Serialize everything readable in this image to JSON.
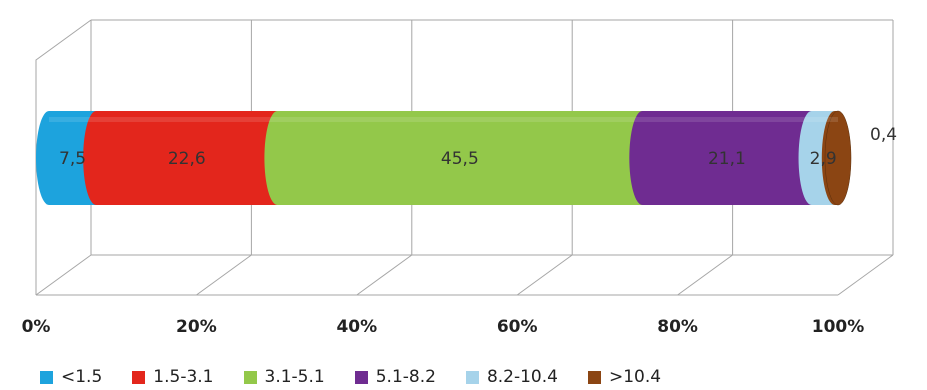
{
  "chart_data": {
    "type": "bar",
    "orientation": "horizontal",
    "stacked": true,
    "percent_scale": true,
    "three_d": true,
    "bar_shape": "cylinder",
    "grid": true,
    "legend_position": "bottom",
    "title": "",
    "xlabel": "",
    "ylabel": "",
    "xlim": [
      0,
      100
    ],
    "x_ticks": [
      "0%",
      "20%",
      "40%",
      "60%",
      "80%",
      "100%"
    ],
    "series": [
      {
        "name": "<1.5",
        "value": 7.5,
        "label": "7,5",
        "color": "#1da3dd"
      },
      {
        "name": "1.5-3.1",
        "value": 22.6,
        "label": "22,6",
        "color": "#e3261c"
      },
      {
        "name": "3.1-5.1",
        "value": 45.5,
        "label": "45,5",
        "color": "#93c84a"
      },
      {
        "name": "5.1-8.2",
        "value": 21.1,
        "label": "21,1",
        "color": "#6f2c91"
      },
      {
        "name": "8.2-10.4",
        "value": 2.9,
        "label": "2,9",
        "color": "#a6d3ea"
      },
      {
        "name": ">10.4",
        "value": 0.4,
        "label": "0,4",
        "color": "#8b4513"
      }
    ]
  }
}
